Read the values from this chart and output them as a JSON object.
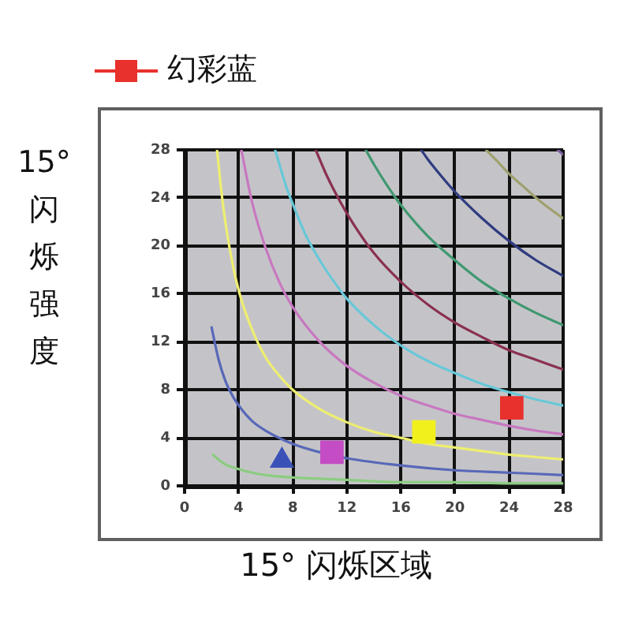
{
  "chart_data": {
    "type": "line",
    "xlabel": "15° 闪烁区域",
    "ylabel": "15° 闪烁强度",
    "xlim": [
      0,
      28
    ],
    "ylim": [
      0,
      28
    ],
    "xticks": [
      0,
      4,
      8,
      12,
      16,
      20,
      24,
      28
    ],
    "yticks": [
      0,
      4,
      8,
      12,
      16,
      20,
      24,
      28
    ],
    "grid": true,
    "legend": "top left",
    "marker": "none",
    "series": [
      {
        "color": "#8ccc80",
        "x": [
          2.1,
          2.5,
          3,
          4,
          5,
          6,
          8,
          10,
          12,
          16,
          20,
          24,
          28
        ],
        "values": [
          2.6,
          2.2,
          1.8,
          1.4,
          1.1,
          0.9,
          0.7,
          0.6,
          0.5,
          0.3,
          0.3,
          0.2,
          0.2
        ]
      },
      {
        "color": "#5868b8",
        "x": [
          2,
          2.5,
          3,
          3.5,
          4,
          5,
          6,
          8,
          10,
          12,
          16,
          20,
          24,
          28
        ],
        "values": [
          13.2,
          10.6,
          8.8,
          7.6,
          6.7,
          5.4,
          4.6,
          3.5,
          2.8,
          2.3,
          1.7,
          1.3,
          1.1,
          0.9
        ]
      },
      {
        "color": "#eeee70",
        "x": [
          2.4,
          2.8,
          3.3,
          4,
          5,
          6,
          7,
          8,
          10,
          12,
          14,
          16,
          18,
          20,
          22,
          24,
          26,
          28
        ],
        "values": [
          28,
          23.8,
          20,
          16.3,
          13,
          10.7,
          9.2,
          8,
          6.4,
          5.3,
          4.5,
          4,
          3.5,
          3.2,
          2.9,
          2.6,
          2.4,
          2.2
        ]
      },
      {
        "color": "#c878c0",
        "x": [
          4.2,
          5,
          6,
          7,
          8,
          10,
          12,
          14,
          16,
          18,
          20,
          22,
          24,
          26,
          28
        ],
        "values": [
          28,
          23.6,
          19.8,
          17,
          14.9,
          12,
          10,
          8.6,
          7.5,
          6.7,
          6,
          5.5,
          5,
          4.6,
          4.3
        ]
      },
      {
        "color": "#68c8d8",
        "x": [
          6.7,
          7.5,
          8,
          9,
          10,
          11,
          12,
          14,
          16,
          18,
          20,
          22,
          24,
          26,
          28
        ],
        "values": [
          28,
          25,
          23.5,
          20.8,
          18.8,
          17.1,
          15.6,
          13.4,
          11.7,
          10.4,
          9.4,
          8.5,
          7.8,
          7.2,
          6.7
        ]
      },
      {
        "color": "#8a3050",
        "x": [
          9.7,
          10.5,
          11.5,
          12.5,
          14,
          16,
          18,
          20,
          22,
          24,
          26,
          28
        ],
        "values": [
          28,
          25.9,
          23.7,
          21.8,
          19.4,
          17,
          15.1,
          13.6,
          12.4,
          11.3,
          10.5,
          9.7
        ]
      },
      {
        "color": "#409870",
        "x": [
          13.4,
          14,
          15,
          16,
          18,
          20,
          22,
          24,
          26,
          28
        ],
        "values": [
          28,
          26.8,
          25,
          23.4,
          20.8,
          18.8,
          17,
          15.6,
          14.4,
          13.4
        ]
      },
      {
        "color": "#303c80",
        "x": [
          17.5,
          18,
          19,
          20,
          22,
          24,
          26,
          28
        ],
        "values": [
          28,
          27.2,
          25.8,
          24.5,
          22.3,
          20.4,
          18.8,
          17.5
        ]
      },
      {
        "color": "#a0a070",
        "x": [
          22.3,
          23,
          24,
          25,
          26,
          27,
          28
        ],
        "values": [
          28,
          27.2,
          26,
          25,
          24,
          23.1,
          22.3
        ]
      },
      {
        "color": "#8060a0",
        "x": [
          27.6,
          28
        ],
        "values": [
          28,
          27.6
        ]
      },
      {
        "type": "scatter",
        "color": "#3a52b8",
        "marker": "triangle",
        "x": [
          7.2
        ],
        "values": [
          2.1
        ]
      },
      {
        "type": "scatter",
        "color": "#c44cc4",
        "marker": "square",
        "x": [
          10.9
        ],
        "values": [
          2.8
        ]
      },
      {
        "type": "scatter",
        "color": "#f2f01c",
        "marker": "square",
        "x": [
          17.7
        ],
        "values": [
          4.5
        ]
      },
      {
        "name": "幻彩蓝",
        "color": "#e8302c",
        "marker": "square",
        "x": [
          24.2
        ],
        "values": [
          6.5
        ]
      }
    ]
  }
}
